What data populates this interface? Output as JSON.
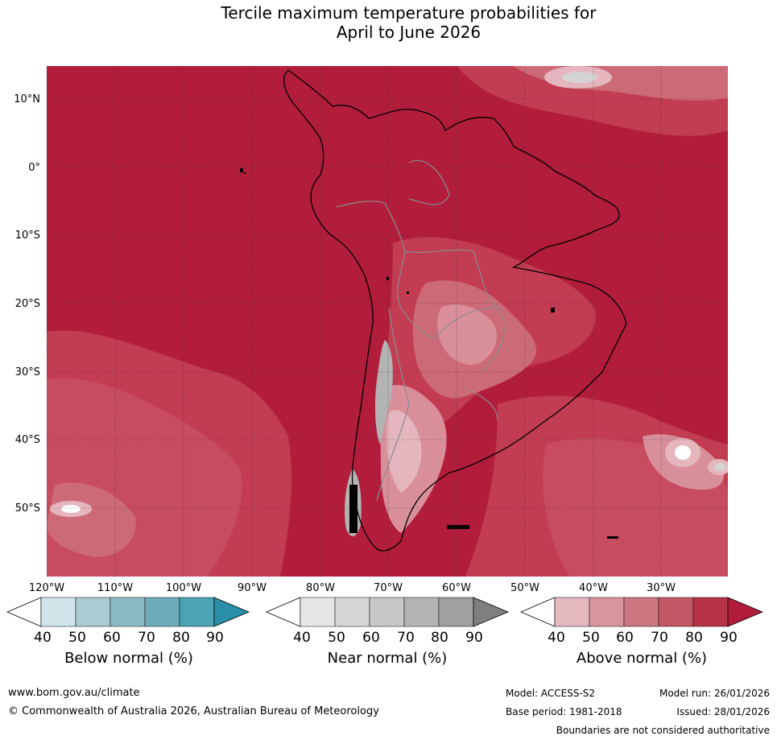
{
  "title": {
    "line1": "Tercile maximum temperature probabilities for",
    "line2": "April to June 2026"
  },
  "axes": {
    "lat_labels": [
      "10°N",
      "0°",
      "10°S",
      "20°S",
      "30°S",
      "40°S",
      "50°S"
    ],
    "lon_labels": [
      "120°W",
      "110°W",
      "100°W",
      "90°W",
      "80°W",
      "70°W",
      "60°W",
      "50°W",
      "40°W",
      "30°W"
    ]
  },
  "colorbars": [
    {
      "label": "Below normal (%)",
      "ticks": [
        "40",
        "50",
        "60",
        "70",
        "80",
        "90"
      ],
      "colors": [
        "#ffffff",
        "#cfe4e9",
        "#a9cbd2",
        "#8cbac4",
        "#6cacbb",
        "#4ba3b4",
        "#2a8ea7"
      ]
    },
    {
      "label": "Near normal (%)",
      "ticks": [
        "40",
        "50",
        "60",
        "70",
        "80",
        "90"
      ],
      "colors": [
        "#ffffff",
        "#e6e6e6",
        "#d6d6d6",
        "#c8c8c8",
        "#b4b4b4",
        "#a0a0a0",
        "#7f7f7f"
      ]
    },
    {
      "label": "Above normal (%)",
      "ticks": [
        "40",
        "50",
        "60",
        "70",
        "80",
        "90"
      ],
      "colors": [
        "#ffffff",
        "#e3b9bf",
        "#d9959e",
        "#cc7680",
        "#c25866",
        "#b73348",
        "#b01c3a"
      ]
    }
  ],
  "map_colors": {
    "ocean_base": "#b21d3b",
    "level_80": "#c23c52",
    "level_70": "#cd6a77",
    "level_60": "#d98f99",
    "level_50": "#e5b6bd",
    "near_normal_light": "#d4d4d4",
    "near_normal_mid": "#b3b3b3",
    "coast": "#000000",
    "border": "#8c8c8c",
    "grid": "#333333"
  },
  "footer": {
    "website": "www.bom.gov.au/climate",
    "copyright": "© Commonwealth of Australia 2026, Australian Bureau of Meteorology",
    "model": "Model: ACCESS-S2",
    "model_run": "Model run: 26/01/2026",
    "base_period": "Base period: 1981-2018",
    "issued": "Issued: 28/01/2026",
    "disclaimer": "Boundaries are not considered authoritative"
  }
}
